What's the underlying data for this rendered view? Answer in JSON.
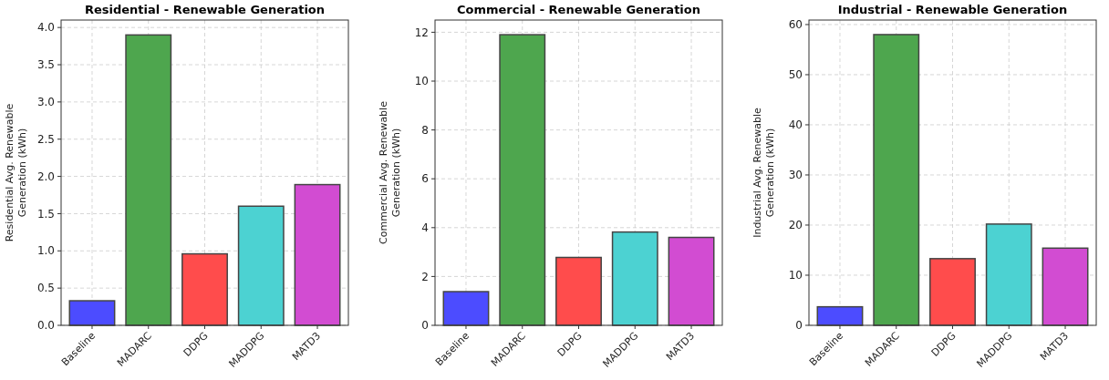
{
  "chart_data": [
    {
      "type": "bar",
      "title": "Residential - Renewable Generation",
      "ylabel": "Residential Avg. Renewable\nGeneration (kWh)",
      "categories": [
        "Baseline",
        "MADARC",
        "DDPG",
        "MADDPG",
        "MATD3"
      ],
      "values": [
        0.33,
        3.9,
        0.96,
        1.6,
        1.89
      ],
      "colors": [
        "#4c4cff",
        "#4ea64e",
        "#ff4c4c",
        "#4cd2d2",
        "#d24cd2"
      ],
      "ylim": [
        0,
        4.1
      ],
      "yticks": [
        {
          "value": 0,
          "label": "0.0"
        },
        {
          "value": 0.5,
          "label": "0.5"
        },
        {
          "value": 1,
          "label": "1.0"
        },
        {
          "value": 1.5,
          "label": "1.5"
        },
        {
          "value": 2,
          "label": "2.0"
        },
        {
          "value": 2.5,
          "label": "2.5"
        },
        {
          "value": 3,
          "label": "3.0"
        },
        {
          "value": 3.5,
          "label": "3.5"
        },
        {
          "value": 4,
          "label": "4.0"
        }
      ],
      "grid": true
    },
    {
      "type": "bar",
      "title": "Commercial - Renewable Generation",
      "ylabel": "Commercial Avg. Renewable\nGeneration (kWh)",
      "categories": [
        "Baseline",
        "MADARC",
        "DDPG",
        "MADDPG",
        "MATD3"
      ],
      "values": [
        1.38,
        11.9,
        2.78,
        3.82,
        3.6
      ],
      "colors": [
        "#4c4cff",
        "#4ea64e",
        "#ff4c4c",
        "#4cd2d2",
        "#d24cd2"
      ],
      "ylim": [
        0,
        12.5
      ],
      "yticks": [
        0,
        2,
        4,
        6,
        8,
        10,
        12
      ],
      "grid": true
    },
    {
      "type": "bar",
      "title": "Industrial - Renewable Generation",
      "ylabel": "Industrial Avg. Renewable\nGeneration (kWh)",
      "categories": [
        "Baseline",
        "MADARC",
        "DDPG",
        "MADDPG",
        "MATD3"
      ],
      "values": [
        3.7,
        58,
        13.3,
        20.2,
        15.4
      ],
      "colors": [
        "#4c4cff",
        "#4ea64e",
        "#ff4c4c",
        "#4cd2d2",
        "#d24cd2"
      ],
      "ylim": [
        0,
        60.9
      ],
      "yticks": [
        0,
        10,
        20,
        30,
        40,
        50,
        60
      ],
      "grid": true
    }
  ]
}
